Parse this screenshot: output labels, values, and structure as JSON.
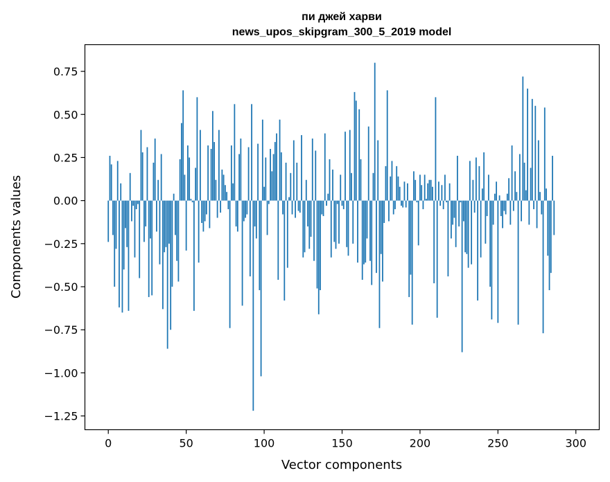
{
  "chart_data": {
    "type": "bar",
    "title_lines": [
      "пи джей харви",
      "news_upos_skipgram_300_5_2019 model"
    ],
    "xlabel": "Vector components",
    "ylabel": "Components values",
    "xlim": [
      -15,
      315
    ],
    "ylim": [
      -1.33,
      0.905
    ],
    "x_ticks": [
      0,
      50,
      100,
      150,
      200,
      250,
      300
    ],
    "y_ticks": [
      0.75,
      0.5,
      0.25,
      0.0,
      -0.25,
      -0.5,
      -0.75,
      -1.0,
      -1.25
    ],
    "y_tick_labels": [
      "0.75",
      "0.50",
      "0.25",
      "0.00",
      "−0.25",
      "−0.50",
      "−0.75",
      "−1.00",
      "−1.25"
    ],
    "bar_color": "#1f77b4",
    "grid": false,
    "values": [
      -0.24,
      0.26,
      0.21,
      -0.2,
      -0.5,
      -0.28,
      0.23,
      -0.62,
      0.1,
      -0.65,
      -0.4,
      -0.16,
      -0.27,
      -0.64,
      0.16,
      -0.12,
      -0.03,
      -0.33,
      -0.05,
      -0.02,
      -0.45,
      0.41,
      0.28,
      -0.24,
      -0.15,
      0.31,
      -0.56,
      -0.22,
      -0.55,
      0.22,
      0.36,
      -0.18,
      0.12,
      -0.37,
      0.27,
      -0.63,
      -0.3,
      -0.27,
      -0.86,
      -0.25,
      -0.75,
      -0.5,
      0.04,
      -0.2,
      -0.35,
      -0.47,
      0.24,
      0.45,
      0.64,
      0.15,
      -0.29,
      0.32,
      0.25,
      0.01,
      -0.01,
      -0.64,
      0.19,
      0.6,
      -0.36,
      0.41,
      -0.13,
      -0.18,
      -0.12,
      -0.08,
      0.32,
      -0.16,
      0.3,
      0.52,
      0.34,
      0.12,
      -0.1,
      0.41,
      -0.07,
      0.18,
      0.15,
      0.09,
      0.05,
      -0.05,
      -0.74,
      0.32,
      0.1,
      0.56,
      -0.15,
      -0.18,
      0.27,
      0.36,
      -0.61,
      -0.12,
      -0.1,
      -0.08,
      0.31,
      -0.44,
      0.56,
      -1.22,
      -0.15,
      -0.22,
      0.33,
      -0.52,
      -1.02,
      0.47,
      0.08,
      0.25,
      -0.2,
      -0.02,
      0.3,
      0.17,
      0.27,
      0.34,
      0.39,
      -0.46,
      0.47,
      0.28,
      -0.08,
      -0.58,
      0.22,
      -0.39,
      0.02,
      0.16,
      -0.08,
      0.35,
      -0.1,
      0.22,
      -0.06,
      -0.07,
      0.38,
      -0.33,
      -0.3,
      0.12,
      -0.15,
      -0.28,
      -0.21,
      0.36,
      -0.35,
      0.29,
      -0.51,
      -0.66,
      -0.52,
      -0.08,
      -0.09,
      0.39,
      -0.03,
      0.04,
      0.24,
      -0.33,
      0.18,
      -0.24,
      -0.28,
      -0.02,
      -0.25,
      0.15,
      -0.03,
      -0.05,
      0.4,
      -0.27,
      -0.32,
      0.41,
      0.16,
      -0.25,
      0.63,
      0.58,
      -0.36,
      0.53,
      0.24,
      -0.46,
      -0.37,
      -0.36,
      -0.22,
      0.43,
      -0.35,
      -0.49,
      0.16,
      0.8,
      -0.42,
      0.35,
      -0.74,
      -0.31,
      -0.47,
      -0.13,
      0.2,
      0.64,
      -0.12,
      0.14,
      0.23,
      -0.08,
      -0.05,
      0.2,
      0.14,
      0.08,
      -0.03,
      -0.04,
      0.11,
      -0.04,
      0.1,
      -0.56,
      -0.43,
      -0.72,
      0.17,
      0.12,
      -0.01,
      -0.26,
      0.15,
      0.09,
      -0.05,
      0.15,
      0.01,
      0.1,
      0.12,
      0.12,
      0.08,
      -0.48,
      0.6,
      -0.68,
      0.11,
      -0.03,
      0.09,
      -0.05,
      0.15,
      -0.01,
      -0.44,
      0.1,
      -0.22,
      -0.14,
      -0.1,
      -0.27,
      0.26,
      -0.15,
      -0.01,
      -0.88,
      -0.12,
      -0.3,
      -0.31,
      -0.39,
      0.23,
      -0.37,
      0.12,
      -0.07,
      0.25,
      -0.58,
      0.2,
      -0.33,
      0.07,
      0.28,
      -0.25,
      -0.09,
      0.15,
      -0.5,
      -0.69,
      -0.14,
      0.04,
      0.11,
      -0.71,
      0.03,
      -0.09,
      -0.16,
      -0.06,
      -0.08,
      0.04,
      0.13,
      -0.14,
      0.32,
      -0.06,
      0.17,
      0.05,
      -0.72,
      0.27,
      -0.12,
      0.72,
      0.22,
      0.06,
      0.65,
      -0.14,
      0.19,
      0.59,
      -0.05,
      0.55,
      -0.16,
      0.35,
      0.05,
      -0.08,
      -0.77,
      0.54,
      0.07,
      -0.32,
      -0.52,
      -0.42,
      0.26,
      -0.2
    ]
  }
}
